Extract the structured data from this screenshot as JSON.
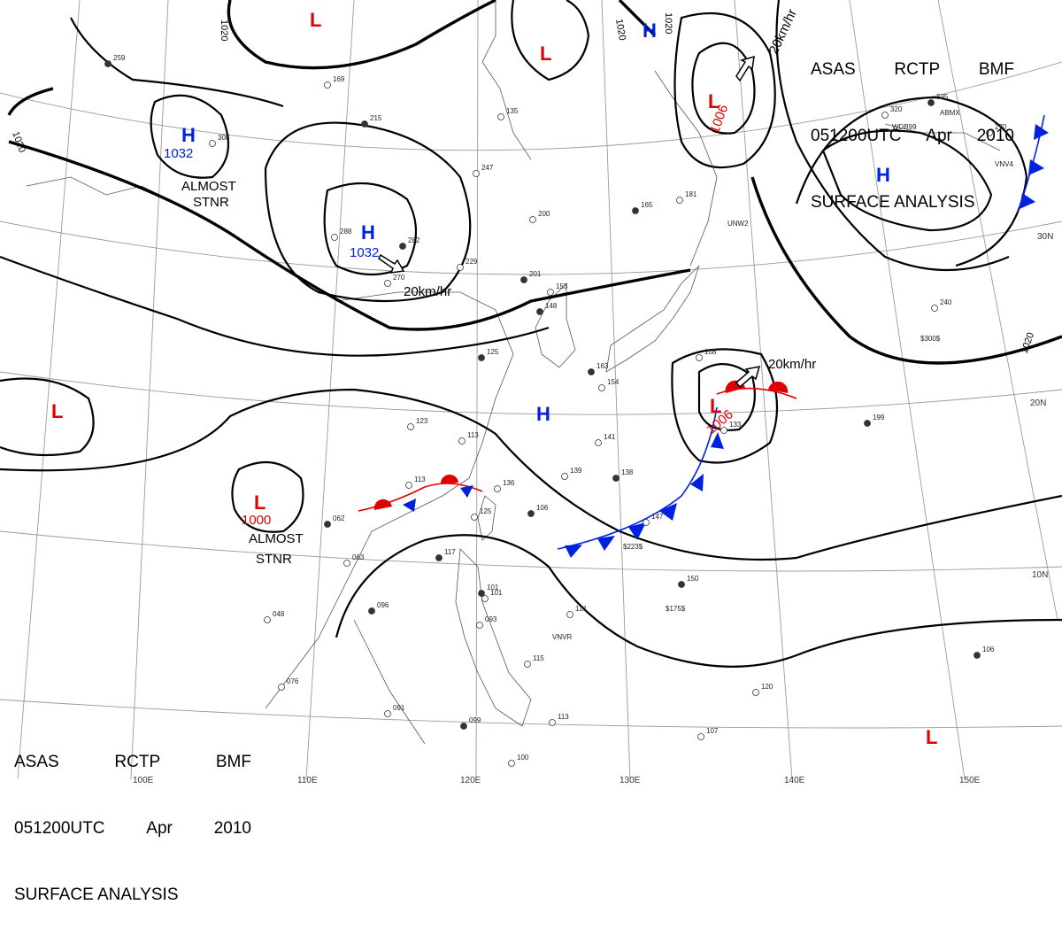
{
  "title": {
    "line1": [
      "ASAS",
      "RCTP",
      "BMF"
    ],
    "line2": [
      "051200UTC",
      "Apr",
      "2010"
    ],
    "line3": "SURFACE ANALYSIS"
  },
  "grid_labels": {
    "lon": [
      "110E",
      "120E",
      "130E",
      "140E",
      "150E"
    ],
    "lat": [
      "30N",
      "20N",
      "10N"
    ],
    "partial_lon": "100E"
  },
  "isobar_labels": [
    "1020",
    "1020",
    "1020",
    "1020",
    "1020"
  ],
  "pressure_centers": [
    {
      "type": "H",
      "value": "1032",
      "note": "ALMOST STNR"
    },
    {
      "type": "H",
      "value": "1032",
      "note": ""
    },
    {
      "type": "L",
      "value": "1006",
      "note": ""
    },
    {
      "type": "L",
      "value": "1006",
      "note": ""
    },
    {
      "type": "L",
      "value": "1000",
      "note": "ALMOST STNR"
    },
    {
      "type": "L",
      "value": "",
      "note": ""
    },
    {
      "type": "L",
      "value": "",
      "note": ""
    },
    {
      "type": "L",
      "value": "",
      "note": ""
    },
    {
      "type": "H",
      "value": "",
      "note": ""
    },
    {
      "type": "H",
      "value": "",
      "note": ""
    },
    {
      "type": "H",
      "value": "",
      "note": ""
    }
  ],
  "center_letters": {
    "low": "L",
    "high": "H"
  },
  "notes": {
    "almost": "ALMOST",
    "stnr": "STNR"
  },
  "motion_vectors": [
    "20km/hr",
    "20km/hr",
    "20km/hr"
  ],
  "station_codes": [
    "WDB99",
    "ABMX",
    "UNW2",
    "VNVR",
    "VNV4",
    "$300$",
    "$175$",
    "$223$"
  ],
  "station_reports": [
    "259",
    "308",
    "288",
    "282",
    "270",
    "229",
    "201",
    "200",
    "247",
    "215",
    "169",
    "135",
    "165",
    "181",
    "320",
    "335",
    "270",
    "240",
    "199",
    "133",
    "108",
    "163",
    "141",
    "139",
    "138",
    "136",
    "125",
    "117",
    "101",
    "113",
    "062",
    "063",
    "048",
    "096",
    "121",
    "093",
    "150",
    "147",
    "115",
    "106",
    "107",
    "100",
    "099",
    "091",
    "076",
    "125",
    "120",
    "113",
    "101",
    "154",
    "153",
    "148",
    "123",
    "113",
    "106"
  ],
  "colors": {
    "low": "#e00000",
    "high": "#0020e0",
    "cold_front": "#0020e0",
    "warm_front": "#e00000",
    "isobar": "#000000",
    "grid": "#9a9a9a"
  }
}
